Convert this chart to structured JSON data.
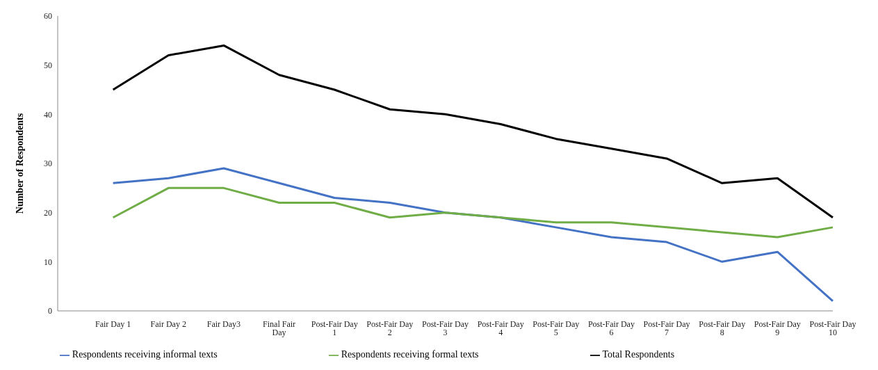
{
  "chart_data": {
    "type": "line",
    "ylabel": "Number of Respondents",
    "categories": [
      null,
      "Fair Day 1",
      "Fair Day 2",
      "Fair Day3",
      "Final Fair Day",
      "Post-Fair Day 1",
      "Post-Fair Day 2",
      "Post-Fair Day 3",
      "Post-Fair Day 4",
      "Post-Fair Day 5",
      "Post-Fair Day 6",
      "Post-Fair Day 7",
      "Post-Fair Day 8",
      "Post-Fair Day 9",
      "Post-Fair Day 10"
    ],
    "series": [
      {
        "name": "Respondents receiving informal texts",
        "color": "#4472c4",
        "values": [
          null,
          26,
          27,
          29,
          26,
          23,
          22,
          20,
          19,
          17,
          15,
          14,
          10,
          12,
          2
        ]
      },
      {
        "name": "Respondents receiving formal texts",
        "color": "#70ad47",
        "values": [
          null,
          19,
          25,
          25,
          22,
          22,
          19,
          20,
          19,
          18,
          18,
          17,
          16,
          15,
          17
        ]
      },
      {
        "name": "Total Respondents",
        "color": "#000000",
        "values": [
          null,
          45,
          52,
          54,
          48,
          45,
          41,
          40,
          38,
          35,
          33,
          31,
          26,
          27,
          19
        ]
      }
    ],
    "ylim": [
      0,
      60
    ],
    "yticks": [
      0,
      10,
      20,
      30,
      40,
      50,
      60
    ],
    "grid": false,
    "legend": "bottom",
    "marker": "none",
    "line_style": "solid"
  }
}
